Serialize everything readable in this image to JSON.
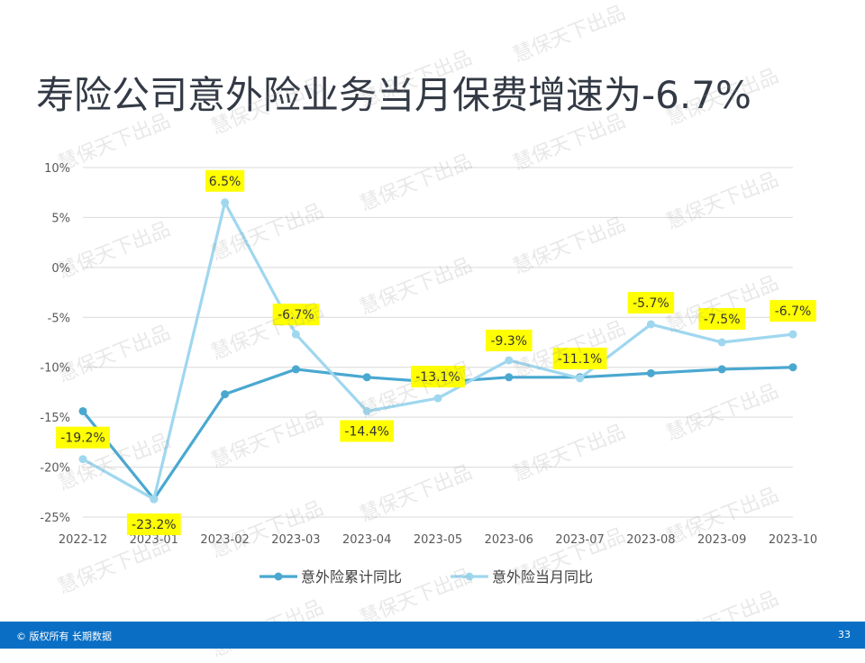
{
  "page": {
    "title": "寿险公司意外险业务当月保费增速为-6.7%",
    "footer_copyright": "© 版权所有 长期数据",
    "page_number": "33",
    "watermark_text": "慧保天下出品"
  },
  "chart_data": {
    "type": "line",
    "categories": [
      "2022-12",
      "2023-01",
      "2023-02",
      "2023-03",
      "2023-04",
      "2023-05",
      "2023-06",
      "2023-07",
      "2023-08",
      "2023-09",
      "2023-10"
    ],
    "series": [
      {
        "name": "意外险累计同比",
        "color": "#4aa8d0",
        "values": [
          -14.4,
          -23.2,
          -12.7,
          -10.2,
          -11.0,
          -11.5,
          -11.0,
          -11.0,
          -10.6,
          -10.2,
          -10.0
        ],
        "labels": []
      },
      {
        "name": "意外险当月同比",
        "color": "#9fd7ef",
        "values": [
          -19.2,
          -23.2,
          6.5,
          -6.7,
          -14.4,
          -13.1,
          -9.3,
          -11.1,
          -5.7,
          -7.5,
          -6.7
        ],
        "labels": [
          "-19.2%",
          "-23.2%",
          "6.5%",
          "-6.7%",
          "-14.4%",
          "-13.1%",
          "-9.3%",
          "-11.1%",
          "-5.7%",
          "-7.5%",
          "-6.7%"
        ]
      }
    ],
    "yticks": [
      "10%",
      "5%",
      "0%",
      "-5%",
      "-10%",
      "-15%",
      "-20%",
      "-25%"
    ],
    "ylim": [
      -25,
      10
    ],
    "grid": true,
    "legend_position": "bottom-center",
    "label_style": {
      "background": "#ffff00",
      "text_color": "#333333"
    }
  }
}
